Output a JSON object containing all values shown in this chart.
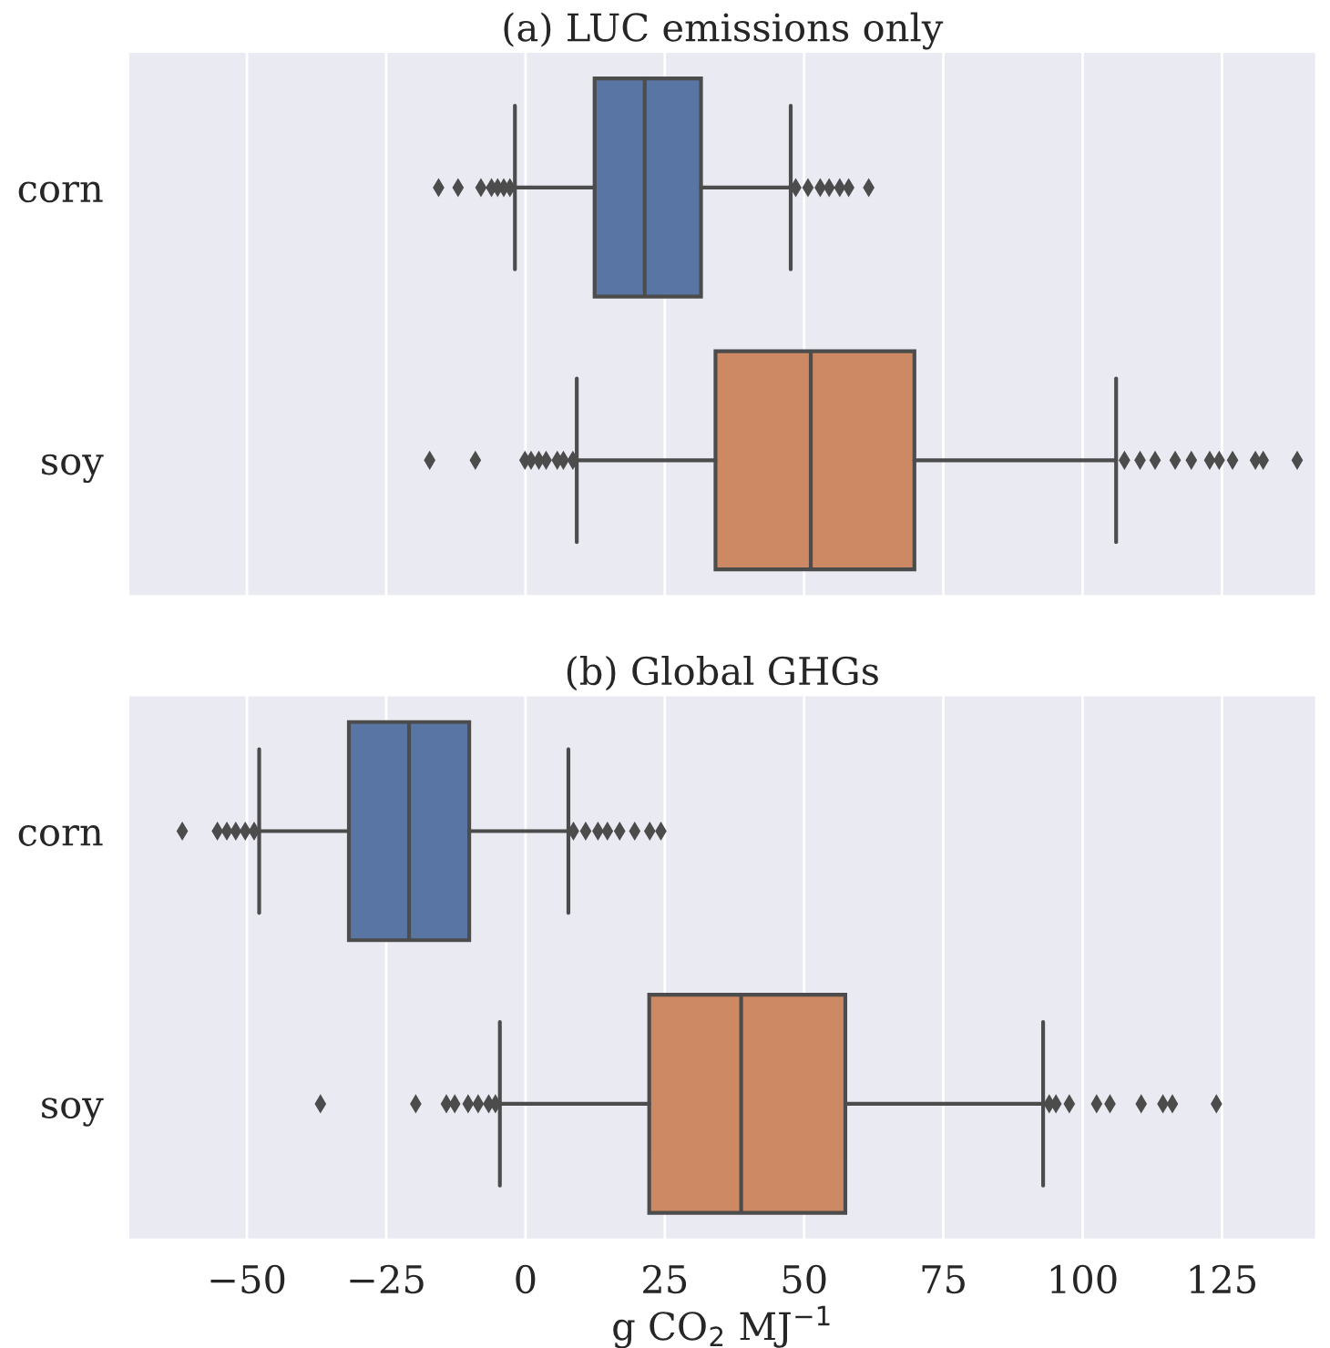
{
  "chart_data": [
    {
      "type": "box",
      "title": "(a) LUC emissions only",
      "orientation": "horizontal",
      "categories": [
        "corn",
        "soy"
      ],
      "colors": [
        "#5975a4",
        "#cc8963"
      ],
      "marker": "diamond",
      "grid": "x",
      "tick_labels": "y",
      "boxes": [
        {
          "low": -1.9,
          "q1": 12.4,
          "median": 21.4,
          "q3": 31.5,
          "high": 47.6,
          "outliers": [
            -15.6,
            -12.1,
            -8.0,
            -6.1,
            -5.0,
            -3.9,
            -2.8,
            48.5,
            50.7,
            52.9,
            54.5,
            56.4,
            58.0,
            61.6
          ]
        },
        {
          "low": 9.2,
          "q1": 34.1,
          "median": 51.2,
          "q3": 69.8,
          "high": 106.0,
          "outliers": [
            -17.2,
            -9.0,
            -0.1,
            1.0,
            2.4,
            3.7,
            5.7,
            6.8,
            8.5,
            107.5,
            110.3,
            113.0,
            116.6,
            119.5,
            122.8,
            124.5,
            126.9,
            131.0,
            132.4,
            138.5
          ]
        }
      ],
      "xlim": [
        -71.4,
        142
      ],
      "xticks": [
        -50,
        -25,
        0,
        25,
        50,
        75,
        100,
        125
      ]
    },
    {
      "type": "box",
      "title": "(b) Global GHGs",
      "orientation": "horizontal",
      "categories": [
        "corn",
        "soy"
      ],
      "colors": [
        "#5975a4",
        "#cc8963"
      ],
      "marker": "diamond",
      "grid": "x",
      "xlabel": "g CO$_{2}$ MJ$^{−1}$",
      "boxes": [
        {
          "low": -47.8,
          "q1": -31.7,
          "median": -20.9,
          "q3": -10.1,
          "high": 7.7,
          "outliers": [
            -61.6,
            -55.3,
            -53.6,
            -52.0,
            -50.3,
            -48.7,
            8.6,
            10.8,
            13.0,
            14.7,
            16.9,
            19.6,
            22.3,
            24.3
          ]
        },
        {
          "low": -4.6,
          "q1": 22.2,
          "median": 38.7,
          "q3": 57.4,
          "high": 92.9,
          "outliers": [
            -36.8,
            -19.7,
            -14.2,
            -12.7,
            -10.3,
            -8.5,
            -6.6,
            -5.4,
            94.0,
            95.2,
            97.6,
            102.5,
            104.9,
            110.5,
            114.4,
            116.1,
            124.0
          ]
        }
      ],
      "xlim": [
        -71.4,
        142
      ],
      "xticks": [
        -50,
        -25,
        0,
        25,
        50,
        75,
        100,
        125
      ]
    }
  ]
}
